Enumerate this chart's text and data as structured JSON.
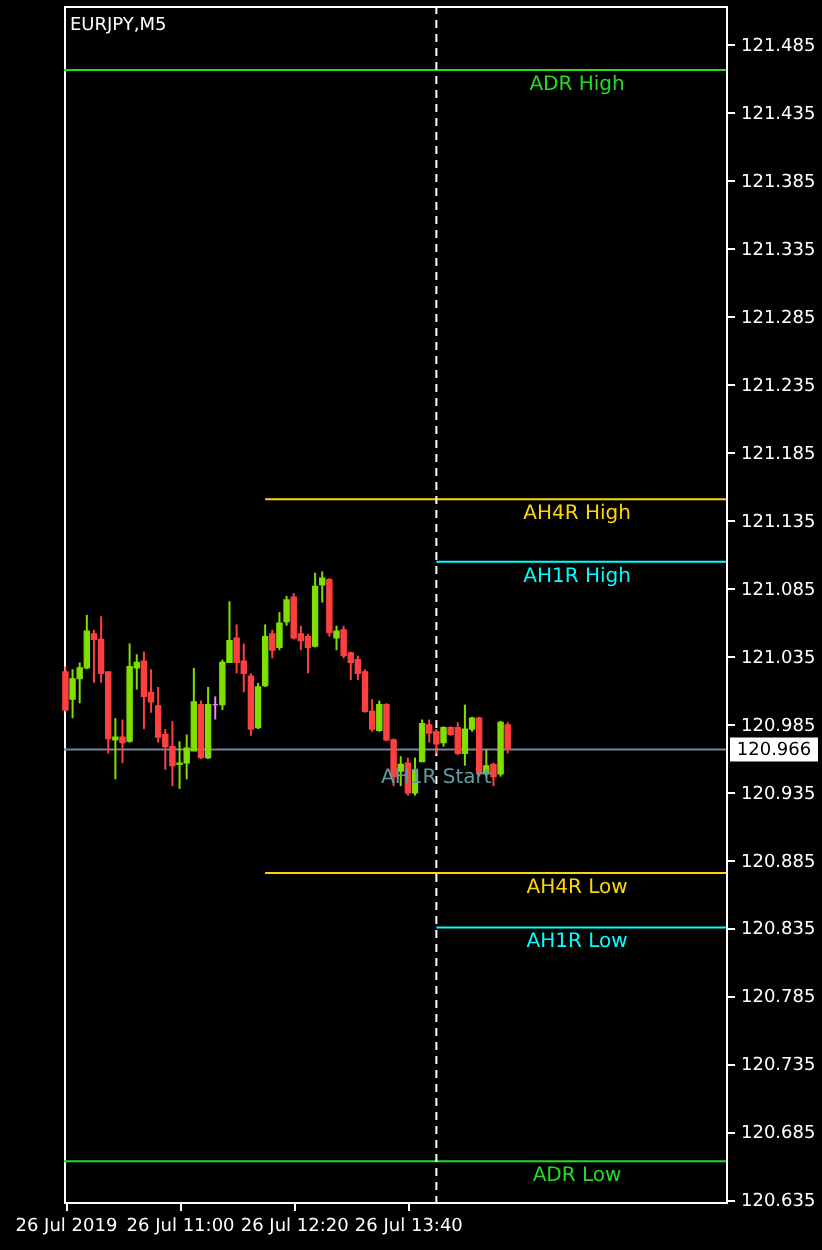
{
  "chart_data": {
    "type": "candlestick",
    "title": "EURJPY,M5",
    "x": [
      "2019-07-26T09:40",
      "2019-07-26T09:45",
      "2019-07-26T09:50",
      "2019-07-26T09:55",
      "2019-07-26T10:00",
      "2019-07-26T10:05",
      "2019-07-26T10:10",
      "2019-07-26T10:15",
      "2019-07-26T10:20",
      "2019-07-26T10:25",
      "2019-07-26T10:30",
      "2019-07-26T10:35",
      "2019-07-26T10:40",
      "2019-07-26T10:45",
      "2019-07-26T10:50",
      "2019-07-26T10:55",
      "2019-07-26T11:00",
      "2019-07-26T11:05",
      "2019-07-26T11:10",
      "2019-07-26T11:15",
      "2019-07-26T11:20",
      "2019-07-26T11:25",
      "2019-07-26T11:30",
      "2019-07-26T11:35",
      "2019-07-26T11:40",
      "2019-07-26T11:45",
      "2019-07-26T11:50",
      "2019-07-26T11:55",
      "2019-07-26T12:00",
      "2019-07-26T12:05",
      "2019-07-26T12:10",
      "2019-07-26T12:15",
      "2019-07-26T12:20",
      "2019-07-26T12:25",
      "2019-07-26T12:30",
      "2019-07-26T12:35",
      "2019-07-26T12:40",
      "2019-07-26T12:45",
      "2019-07-26T12:50",
      "2019-07-26T12:55",
      "2019-07-26T13:00",
      "2019-07-26T13:05",
      "2019-07-26T13:10",
      "2019-07-26T13:15",
      "2019-07-26T13:20",
      "2019-07-26T13:25",
      "2019-07-26T13:30",
      "2019-07-26T13:35",
      "2019-07-26T13:40",
      "2019-07-26T13:45",
      "2019-07-26T13:50",
      "2019-07-26T13:55",
      "2019-07-26T14:00",
      "2019-07-26T14:05",
      "2019-07-26T14:10",
      "2019-07-26T14:15",
      "2019-07-26T14:20",
      "2019-07-26T14:25",
      "2019-07-26T14:30",
      "2019-07-26T14:35",
      "2019-07-26T14:40",
      "2019-07-26T14:45",
      "2019-07-26T14:50"
    ],
    "ohlc": [
      [
        121.023,
        121.027,
        120.994,
        120.995
      ],
      [
        121.003,
        121.025,
        120.989,
        121.018
      ],
      [
        121.018,
        121.03,
        121.0,
        121.026
      ],
      [
        121.026,
        121.065,
        121.025,
        121.053
      ],
      [
        121.051,
        121.054,
        121.015,
        121.047
      ],
      [
        121.047,
        121.064,
        121.015,
        121.022
      ],
      [
        121.023,
        121.023,
        120.963,
        120.974
      ],
      [
        120.973,
        120.989,
        120.944,
        120.975
      ],
      [
        120.975,
        120.988,
        120.956,
        120.971
      ],
      [
        120.972,
        121.044,
        120.971,
        121.027
      ],
      [
        121.026,
        121.036,
        121.01,
        121.03
      ],
      [
        121.031,
        121.038,
        120.981,
        121.005
      ],
      [
        121.008,
        121.025,
        120.993,
        121.001
      ],
      [
        120.998,
        121.012,
        120.971,
        120.975
      ],
      [
        120.977,
        120.981,
        120.951,
        120.968
      ],
      [
        120.968,
        120.987,
        120.939,
        120.954
      ],
      [
        120.955,
        120.972,
        120.937,
        120.956
      ],
      [
        120.956,
        120.977,
        120.944,
        120.967
      ],
      [
        120.965,
        121.026,
        120.965,
        121.001
      ],
      [
        120.999,
        121.002,
        120.959,
        120.96
      ],
      [
        120.96,
        121.012,
        120.959,
        120.999
      ],
      [
        120.999,
        121.005,
        120.988,
        120.999
      ],
      [
        120.999,
        121.032,
        120.995,
        121.03
      ],
      [
        121.03,
        121.075,
        121.03,
        121.046
      ],
      [
        121.048,
        121.058,
        121.022,
        121.03
      ],
      [
        121.031,
        121.044,
        121.008,
        121.022
      ],
      [
        121.02,
        121.022,
        120.976,
        120.981
      ],
      [
        120.982,
        121.015,
        120.981,
        121.012
      ],
      [
        121.013,
        121.058,
        121.012,
        121.049
      ],
      [
        121.051,
        121.054,
        121.033,
        121.039
      ],
      [
        121.041,
        121.067,
        121.039,
        121.059
      ],
      [
        121.06,
        121.079,
        121.057,
        121.076
      ],
      [
        121.078,
        121.081,
        121.047,
        121.048
      ],
      [
        121.051,
        121.057,
        121.039,
        121.046
      ],
      [
        121.049,
        121.051,
        121.022,
        121.041
      ],
      [
        121.042,
        121.096,
        121.041,
        121.086
      ],
      [
        121.087,
        121.097,
        121.074,
        121.092
      ],
      [
        121.091,
        121.092,
        121.049,
        121.052
      ],
      [
        121.048,
        121.057,
        121.039,
        121.053
      ],
      [
        121.054,
        121.057,
        121.033,
        121.035
      ],
      [
        121.037,
        121.038,
        121.017,
        121.03
      ],
      [
        121.032,
        121.035,
        121.017,
        121.022
      ],
      [
        121.023,
        121.025,
        120.993,
        120.994
      ],
      [
        120.994,
        121.003,
        120.979,
        120.981
      ],
      [
        120.98,
        121.002,
        120.979,
        120.999
      ],
      [
        120.999,
        121.0,
        120.972,
        120.973
      ],
      [
        120.973,
        120.974,
        120.939,
        120.946
      ],
      [
        120.95,
        120.961,
        120.939,
        120.955
      ],
      [
        120.956,
        120.96,
        120.932,
        120.934
      ],
      [
        120.934,
        120.96,
        120.932,
        120.951
      ],
      [
        120.957,
        120.988,
        120.957,
        120.985
      ],
      [
        120.984,
        120.988,
        120.971,
        120.978
      ],
      [
        120.979,
        120.981,
        120.963,
        120.97
      ],
      [
        120.971,
        120.983,
        120.968,
        120.982
      ],
      [
        120.982,
        120.983,
        120.976,
        120.977
      ],
      [
        120.982,
        120.986,
        120.962,
        120.963
      ],
      [
        120.963,
        120.999,
        120.954,
        120.981
      ],
      [
        120.981,
        120.99,
        120.979,
        120.989
      ],
      [
        120.989,
        120.99,
        120.946,
        120.948
      ],
      [
        120.948,
        120.966,
        120.946,
        120.954
      ],
      [
        120.955,
        120.956,
        120.939,
        120.946
      ],
      [
        120.948,
        120.987,
        120.946,
        120.986
      ],
      [
        120.984,
        120.986,
        120.963,
        120.966
      ]
    ],
    "colors": [
      "#ff4040",
      "#7fe000",
      "#7fe000",
      "#7fe000",
      "#ff4040",
      "#ff4040",
      "#ff4040",
      "#7fe000",
      "#ff4040",
      "#7fe000",
      "#7fe000",
      "#ff4040",
      "#ff4040",
      "#ff4040",
      "#ff4040",
      "#ff4040",
      "#7fe000",
      "#7fe000",
      "#7fe000",
      "#ff4040",
      "#7fe000",
      "#ee82ee",
      "#7fe000",
      "#7fe000",
      "#ff4040",
      "#ff4040",
      "#ff4040",
      "#7fe000",
      "#7fe000",
      "#ff4040",
      "#7fe000",
      "#7fe000",
      "#ff4040",
      "#ff4040",
      "#ff4040",
      "#7fe000",
      "#7fe000",
      "#ff4040",
      "#7fe000",
      "#ff4040",
      "#ff4040",
      "#ff4040",
      "#ff4040",
      "#ff4040",
      "#7fe000",
      "#ff4040",
      "#ff4040",
      "#7fe000",
      "#ff4040",
      "#7fe000",
      "#7fe000",
      "#ff4040",
      "#ff4040",
      "#7fe000",
      "#ff4040",
      "#ff4040",
      "#7fe000",
      "#7fe000",
      "#ff4040",
      "#7fe000",
      "#ff4040",
      "#7fe000",
      "#ff4040"
    ],
    "xlim": [
      "2019-07-26T09:39",
      "2019-07-26T17:23"
    ],
    "xticks": [
      {
        "value": "2019-07-26T09:40",
        "label": "26 Jul 2019"
      },
      {
        "value": "2019-07-26T11:00",
        "label": "26 Jul 11:00"
      },
      {
        "value": "2019-07-26T12:20",
        "label": "26 Jul 12:20"
      },
      {
        "value": "2019-07-26T13:40",
        "label": "26 Jul 13:40"
      }
    ],
    "ylim": [
      120.633,
      121.513
    ],
    "yticks": [
      120.635,
      120.685,
      120.735,
      120.785,
      120.835,
      120.885,
      120.935,
      120.985,
      121.035,
      121.085,
      121.135,
      121.185,
      121.235,
      121.285,
      121.335,
      121.385,
      121.435,
      121.485
    ],
    "series": [
      {
        "name": "ADR High",
        "type": "line",
        "color": "#22dd22",
        "x": [
          "2019-07-26T09:39",
          "2019-07-26T17:23"
        ],
        "values": [
          121.466,
          121.466
        ]
      },
      {
        "name": "AH4R High",
        "type": "line",
        "color": "#ffd700",
        "x": [
          "2019-07-26T12:00",
          "2019-07-26T17:23"
        ],
        "values": [
          121.15,
          121.15
        ]
      },
      {
        "name": "AH1R High",
        "type": "line",
        "color": "#00ffff",
        "x": [
          "2019-07-26T14:00",
          "2019-07-26T17:23"
        ],
        "values": [
          121.104,
          121.104
        ]
      },
      {
        "name": "AH4R Low",
        "type": "line",
        "color": "#ffd700",
        "x": [
          "2019-07-26T12:00",
          "2019-07-26T17:23"
        ],
        "values": [
          120.875,
          120.875
        ]
      },
      {
        "name": "AH1R Low",
        "type": "line",
        "color": "#00ffff",
        "x": [
          "2019-07-26T14:00",
          "2019-07-26T17:23"
        ],
        "values": [
          120.835,
          120.835
        ]
      },
      {
        "name": "ADR Low",
        "type": "line",
        "color": "#22dd22",
        "x": [
          "2019-07-26T09:39",
          "2019-07-26T17:23"
        ],
        "values": [
          120.663,
          120.663
        ]
      }
    ],
    "ref_lines": [
      {
        "axis": "y",
        "value": 120.966,
        "label": "120.966",
        "color": "#778899"
      },
      {
        "axis": "x",
        "value": "2019-07-26T14:00",
        "label": "AH1R Start",
        "color": "#ffffff",
        "line_style": "dashed"
      }
    ]
  }
}
